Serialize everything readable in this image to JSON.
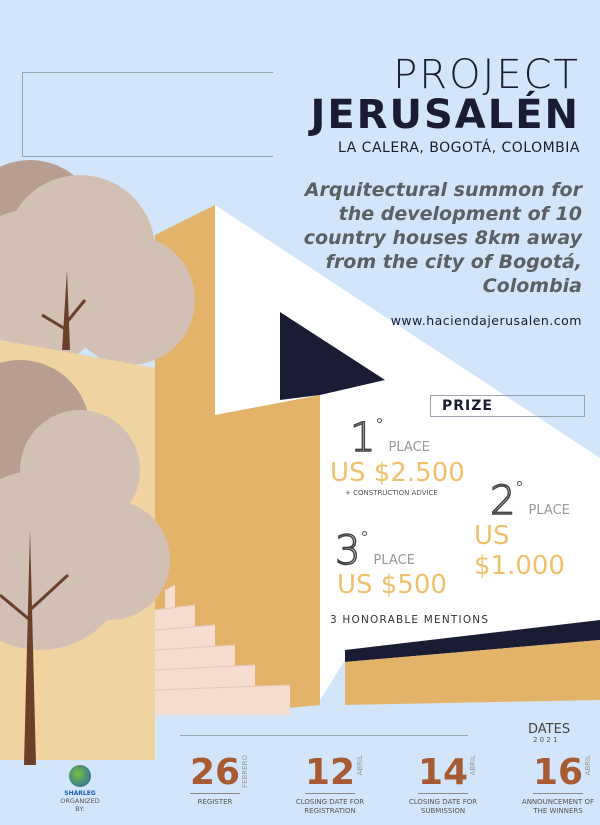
{
  "header": {
    "title_line1": "PROJECT",
    "title_line2": "JERUSALÉN",
    "location": "LA CALERA, BOGOTÁ, COLOMBIA"
  },
  "description": "Arquitectural summon for the development of 10 country houses 8km away from the city of Bogotá, Colombia",
  "website": "www.haciendajerusalen.com",
  "prize": {
    "heading": "PRIZE",
    "places": [
      {
        "rank": "1",
        "degree": "°",
        "place": "PLACE",
        "amount": "US $2.500",
        "note": "+ CONSTRUCTION ADVICE"
      },
      {
        "rank": "2",
        "degree": "°",
        "place": "PLACE",
        "amount": "US $1.000"
      },
      {
        "rank": "3",
        "degree": "°",
        "place": "PLACE",
        "amount": "US $500"
      }
    ],
    "honorable": "3  HONORABLE MENTIONS"
  },
  "organizer": {
    "logo_text": "SHARLEG",
    "label": "ORGANIZED BY:"
  },
  "dates": {
    "heading": "DATES",
    "year": "2 0 2 1",
    "items": [
      {
        "day": "26",
        "month": "FEBRERO",
        "label": "REGISTER"
      },
      {
        "day": "12",
        "month": "ABRIL",
        "label": "CLOSING DATE FOR REGISTRATION"
      },
      {
        "day": "14",
        "month": "ABRIL",
        "label": "CLOSING DATE FOR SUBMISSION"
      },
      {
        "day": "16",
        "month": "ABRIL",
        "label": "ANNOUNCEMENT OF THE WINNERS"
      }
    ]
  },
  "colors": {
    "background": "#d2e5fb",
    "tan": "#e3b36a",
    "navy": "#1a1c33",
    "gold": "#f1c06d",
    "rust": "#a85a32"
  }
}
